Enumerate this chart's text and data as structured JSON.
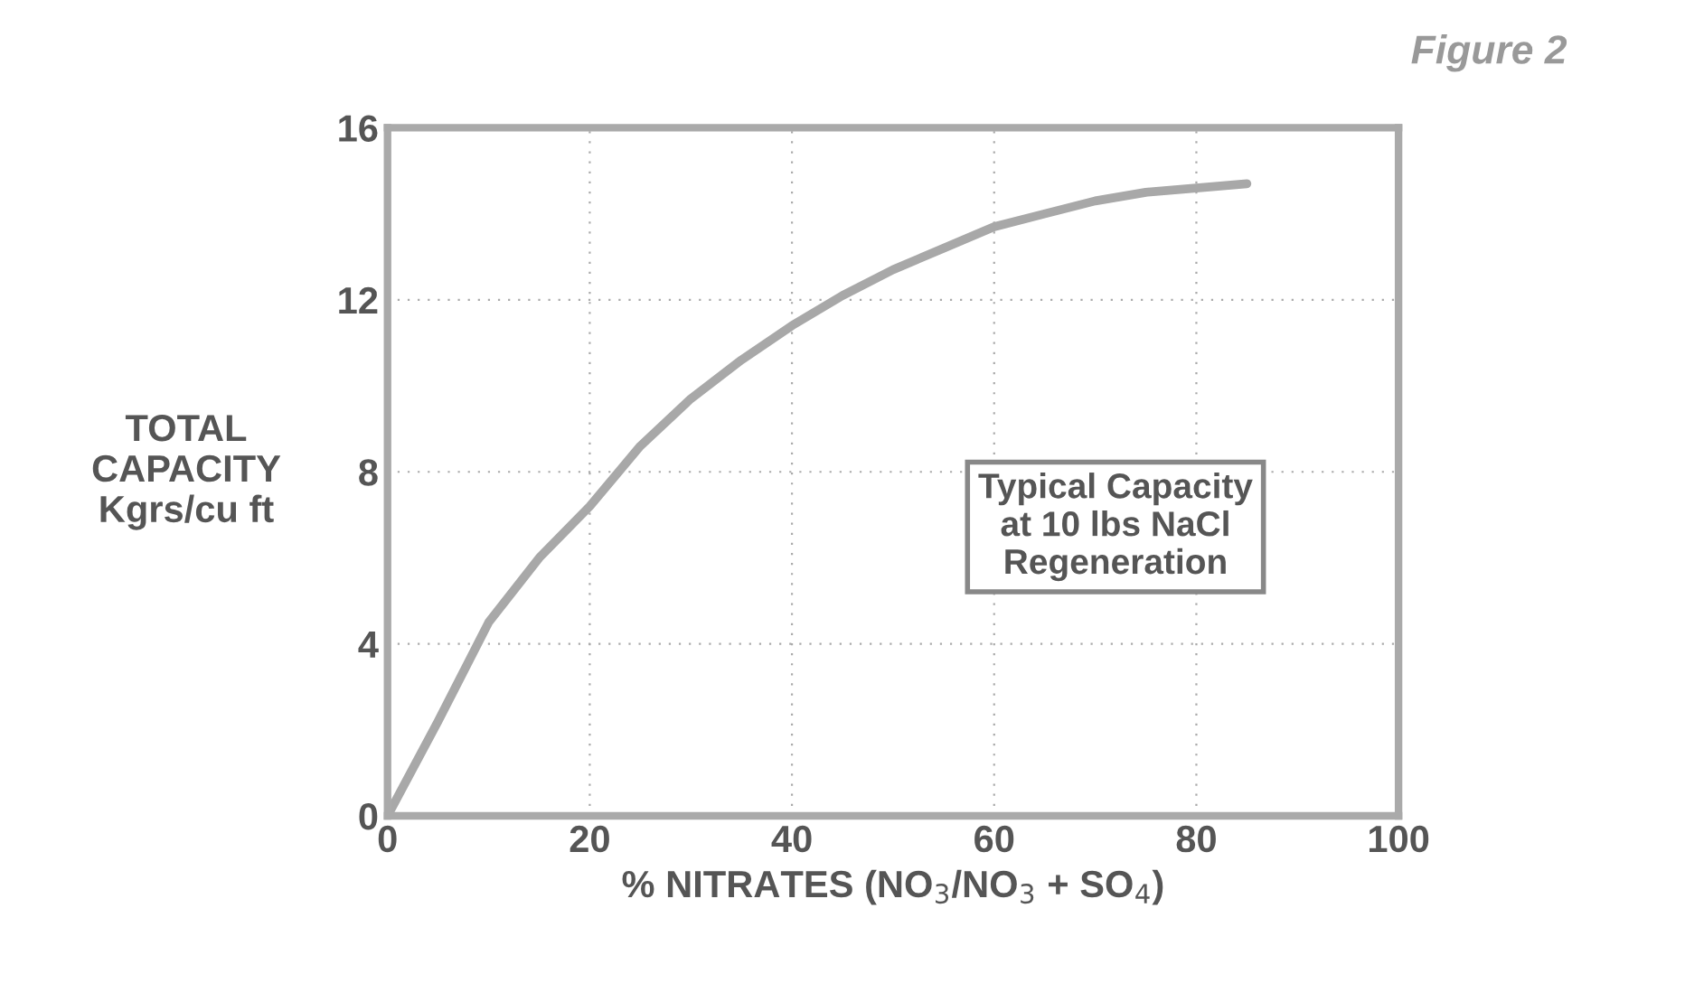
{
  "chart_data": {
    "type": "line",
    "title": "Figure 2",
    "xlabel": "% NITRATES (NO$_{3}$/NO$_{3}$ + SO$_{4}$)",
    "ylabel": "TOTAL\nCAPACITY\nKgrs/cu ft",
    "x": [
      0,
      5,
      10,
      15,
      20,
      25,
      30,
      35,
      40,
      45,
      50,
      55,
      60,
      65,
      70,
      75,
      80,
      85
    ],
    "series": [
      {
        "color": "#a8a8a8",
        "values": [
          0,
          2.2,
          4.5,
          6,
          7.2,
          8.6,
          9.7,
          10.6,
          11.4,
          12.1,
          12.7,
          13.2,
          13.7,
          14.0,
          14.3,
          14.5,
          14.6,
          14.7
        ]
      }
    ],
    "xlim": [
      0,
      100
    ],
    "ylim": [
      0,
      16
    ],
    "xticks": [
      0,
      20,
      40,
      60,
      80,
      100
    ],
    "yticks": [
      0,
      4,
      8,
      12,
      16
    ],
    "grid": true,
    "annotations": [
      "Typical Capacity\nat 10 lbs NaCl\nRegeneration"
    ]
  }
}
